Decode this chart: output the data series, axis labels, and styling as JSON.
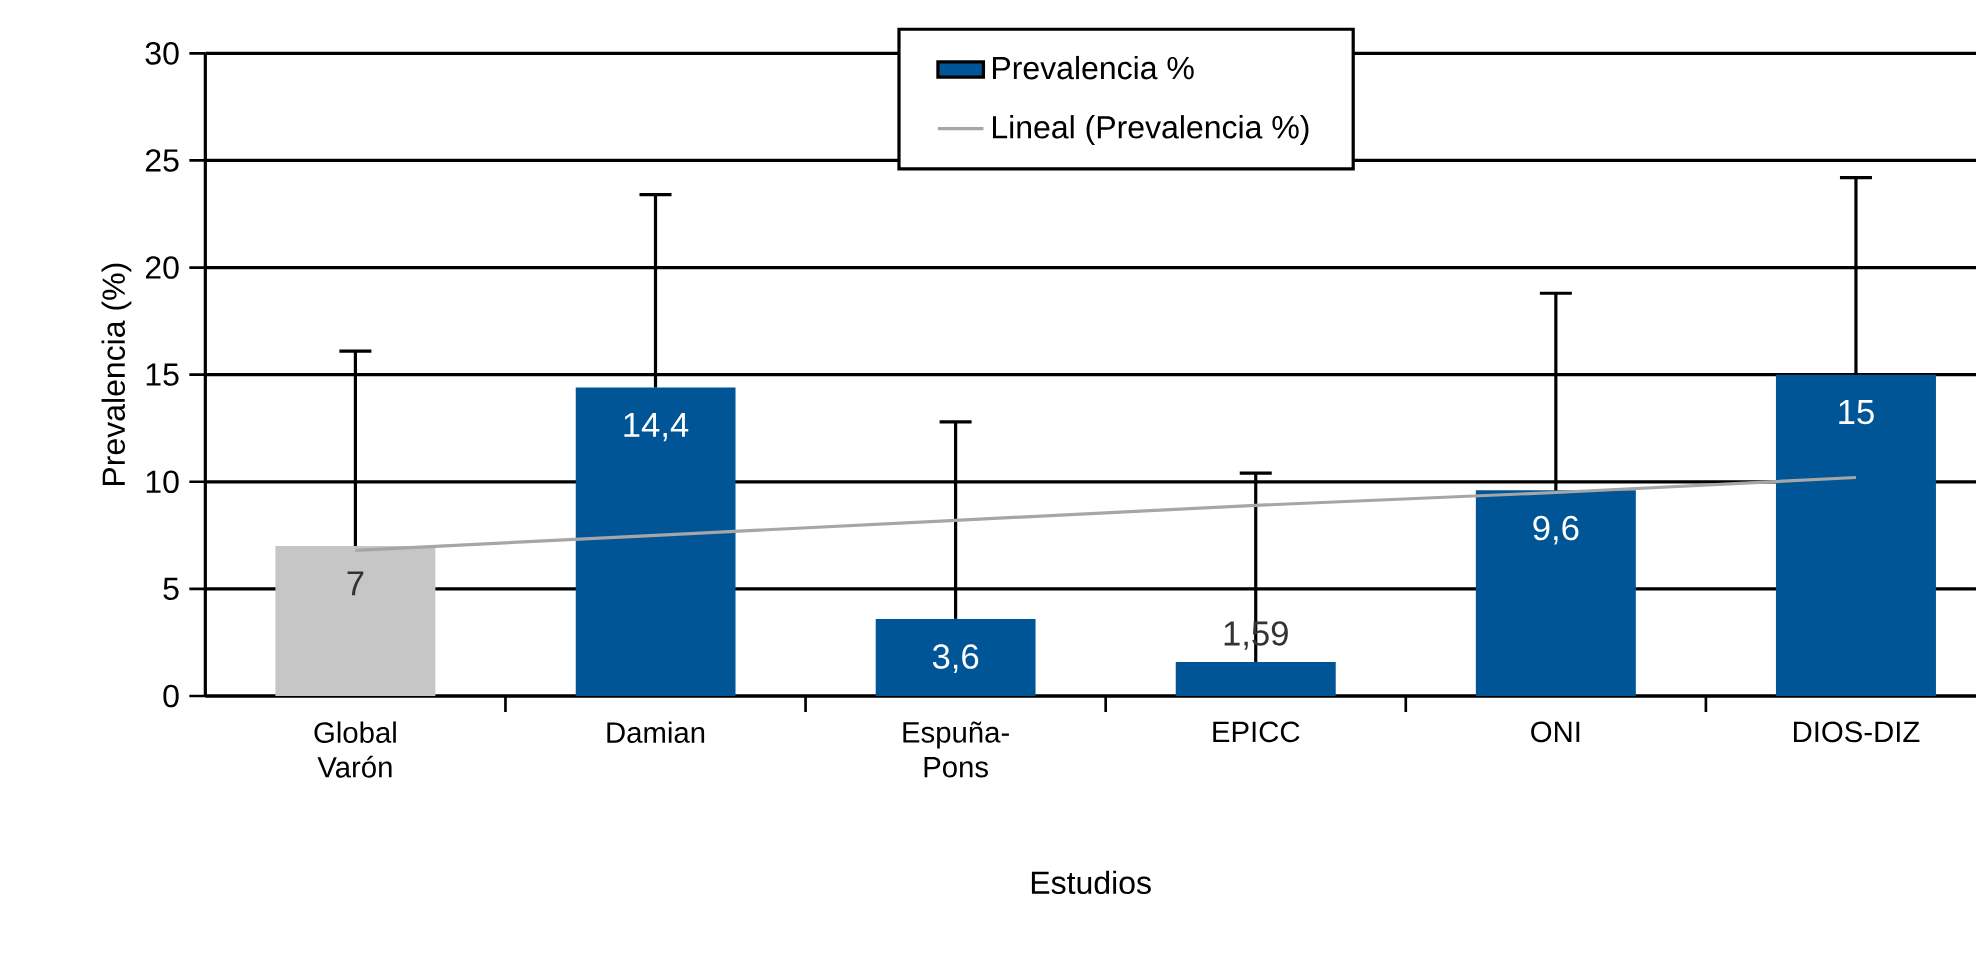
{
  "chart_data": {
    "type": "bar",
    "xlabel": "Estudios",
    "ylabel": "Prevalencia (%)",
    "categories": [
      "Global Varón",
      "Damian",
      "Espuña-Pons",
      "EPICC",
      "ONI",
      "DIOS-DIZ"
    ],
    "series": [
      {
        "name": "Prevalencia %",
        "color": "#005596",
        "colors": [
          "#c6c6c6",
          "#005596",
          "#005596",
          "#005596",
          "#005596",
          "#005596"
        ],
        "values": [
          7,
          14.4,
          3.6,
          1.59,
          9.6,
          15
        ],
        "errors": [
          [
            7,
            16.1
          ],
          [
            14.4,
            23.4
          ],
          [
            3.6,
            12.8
          ],
          [
            1.59,
            10.4
          ],
          [
            9.6,
            18.8
          ],
          [
            15,
            24.2
          ]
        ],
        "value_labels": [
          "7",
          "14,4",
          "3,6",
          "1,59",
          "9,6",
          "15"
        ]
      },
      {
        "name": "Lineal (Prevalencia %)",
        "type": "line",
        "color": "#a6a6a6",
        "values": [
          6.8,
          7.5,
          8.2,
          8.9,
          9.5,
          10.2
        ]
      }
    ],
    "ylim": [
      0,
      30
    ],
    "yticks": [
      0,
      5,
      10,
      15,
      20,
      25,
      30
    ],
    "grid": "y",
    "legend": "top"
  }
}
